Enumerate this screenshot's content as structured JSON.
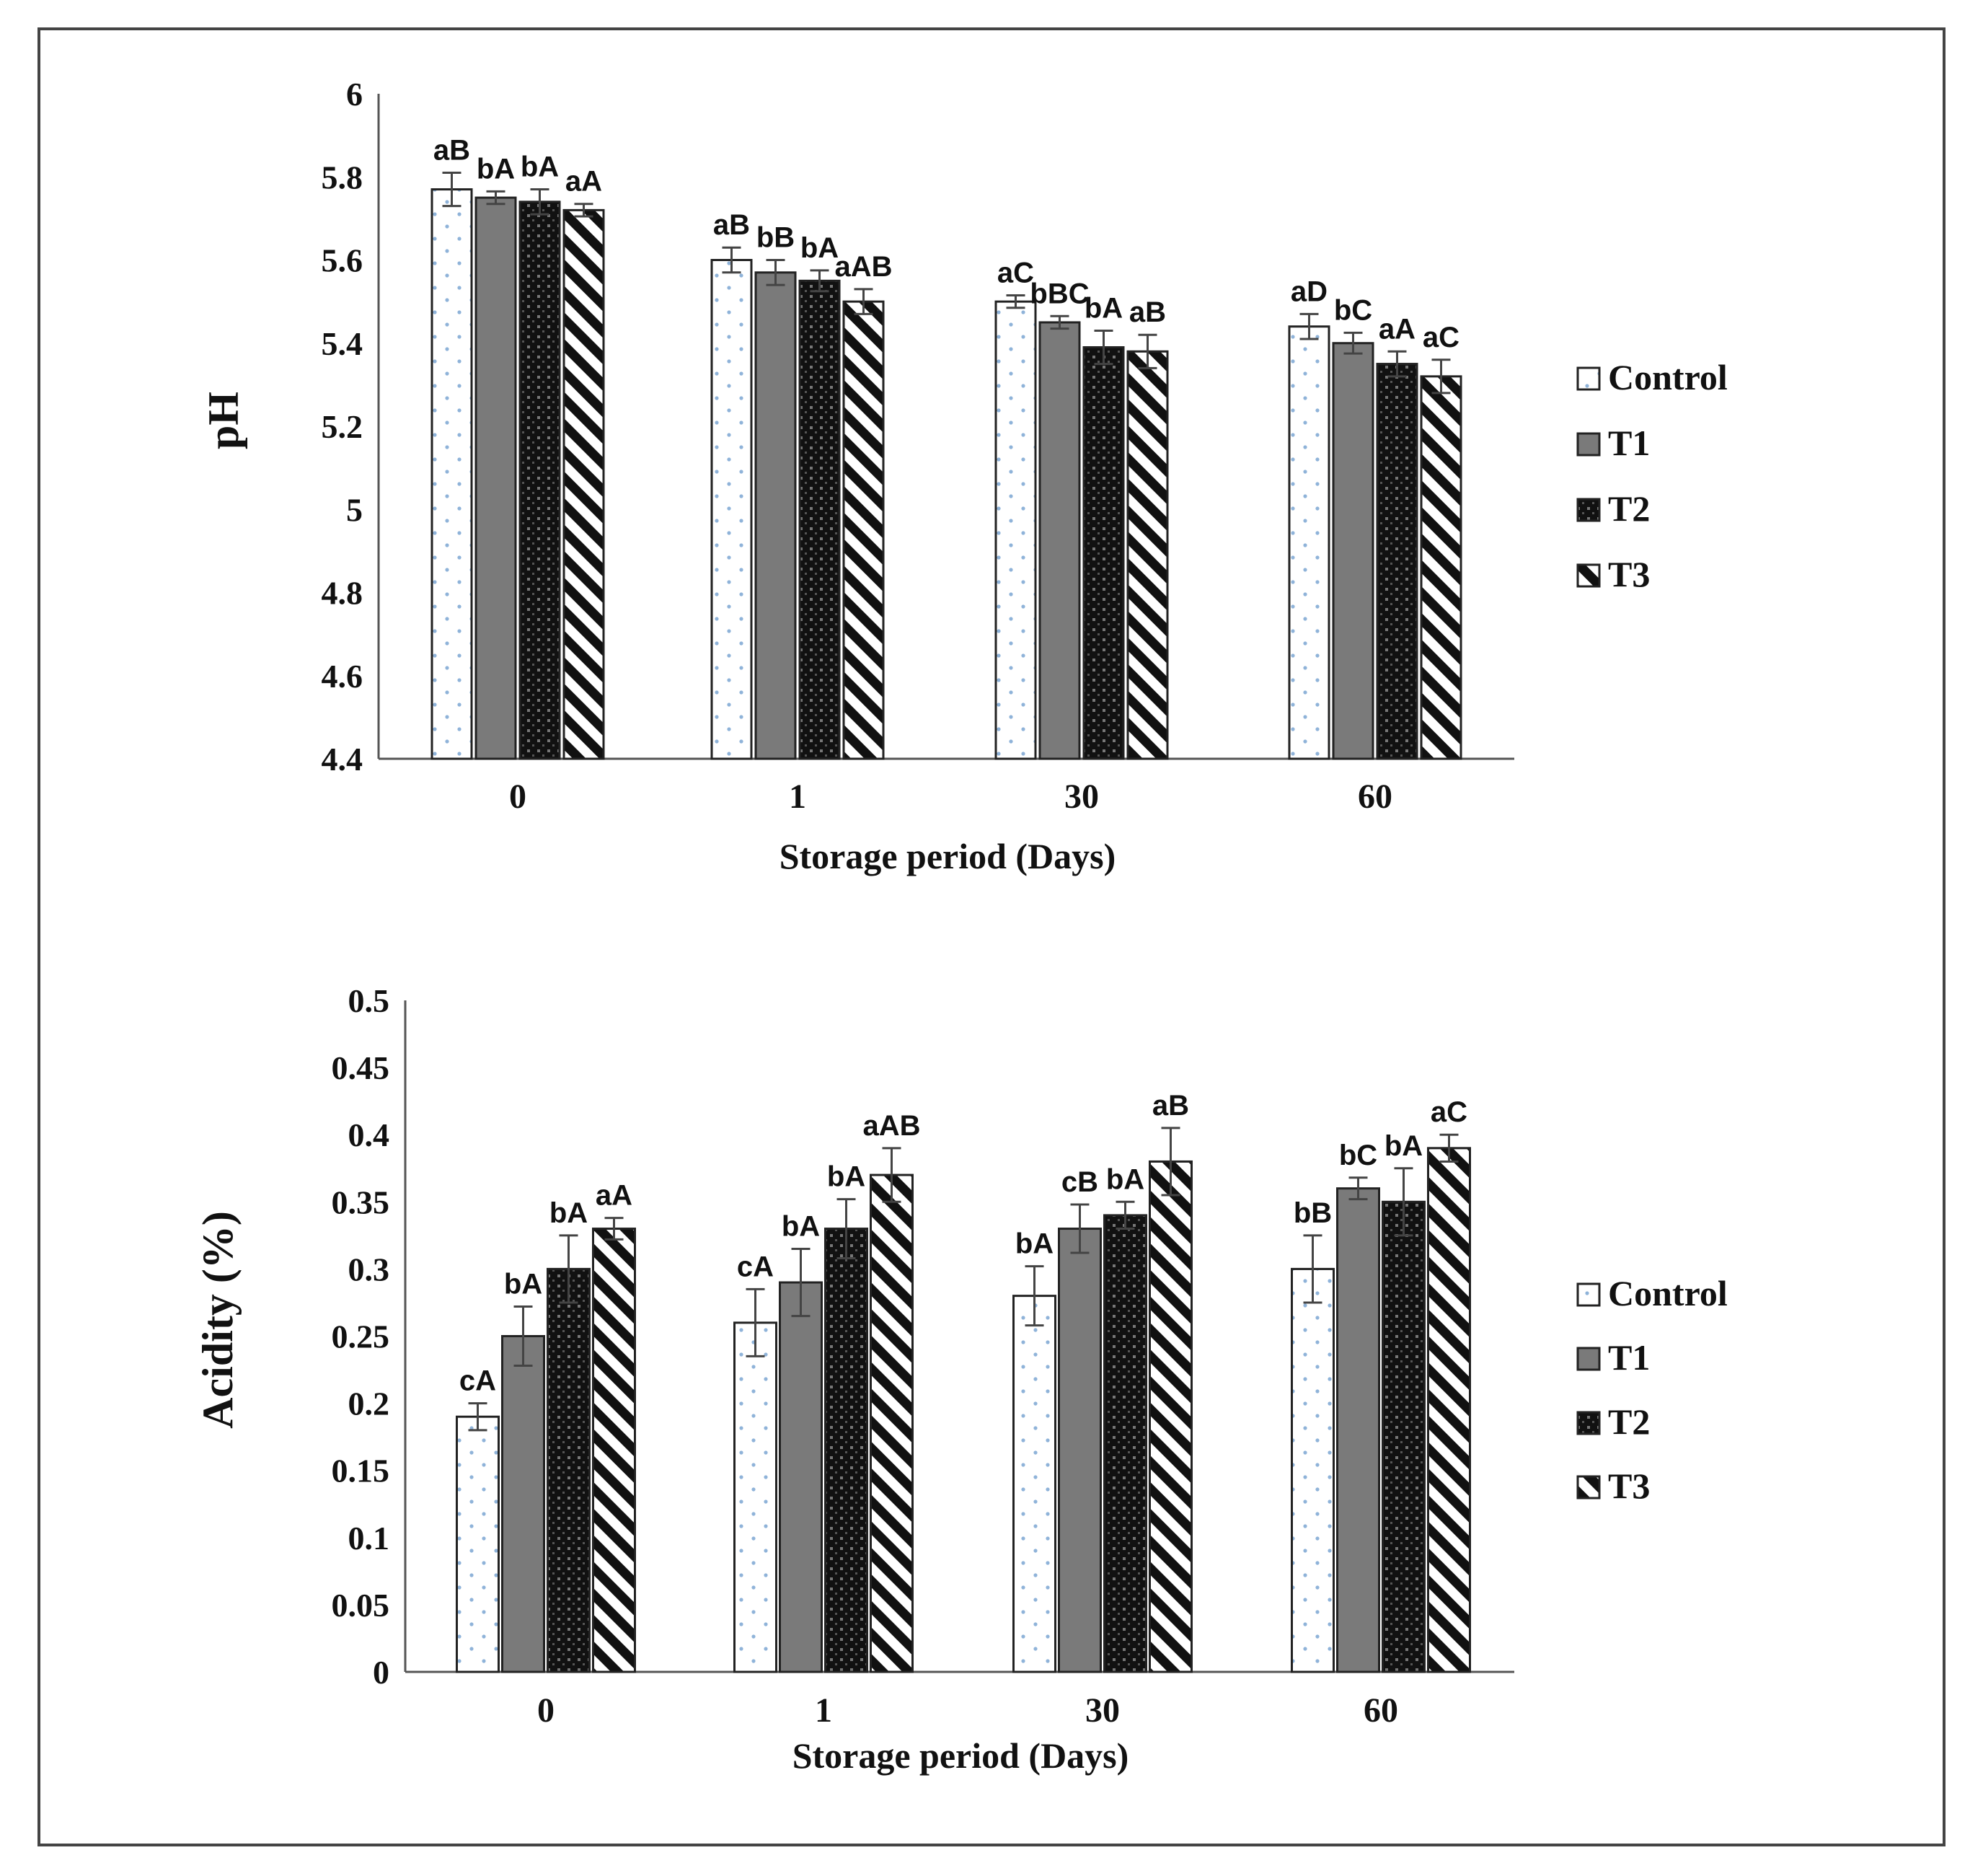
{
  "chart_data": [
    {
      "type": "bar",
      "title": "",
      "xlabel": "Storage period (Days)",
      "ylabel": "pH",
      "categories": [
        "0",
        "1",
        "30",
        "60"
      ],
      "ylim": [
        4.4,
        6
      ],
      "yticks": [
        "6",
        "5.8",
        "5.6",
        "5.4",
        "5.2",
        "5",
        "4.8",
        "4.6",
        "4.4"
      ],
      "grid": false,
      "legend": "right",
      "series": [
        {
          "name": "Control",
          "values": [
            5.77,
            5.6,
            5.5,
            5.44
          ],
          "errors": [
            0.04,
            0.03,
            0.015,
            0.03
          ],
          "labels": [
            "aB",
            "aB",
            "aC",
            "aD"
          ]
        },
        {
          "name": "T1",
          "values": [
            5.75,
            5.57,
            5.45,
            5.4
          ],
          "errors": [
            0.015,
            0.03,
            0.015,
            0.025
          ],
          "labels": [
            "bA",
            "bB",
            "bBC",
            "bC"
          ]
        },
        {
          "name": "T2",
          "values": [
            5.74,
            5.55,
            5.39,
            5.35
          ],
          "errors": [
            0.03,
            0.025,
            0.04,
            0.03
          ],
          "labels": [
            "bA",
            "bA",
            "bA",
            "aA"
          ]
        },
        {
          "name": "T3",
          "values": [
            5.72,
            5.5,
            5.38,
            5.32
          ],
          "errors": [
            0.015,
            0.03,
            0.04,
            0.04
          ],
          "labels": [
            "aA",
            "aAB",
            "aB",
            "aC"
          ]
        }
      ]
    },
    {
      "type": "bar",
      "title": "",
      "xlabel": "Storage period (Days)",
      "ylabel": "Acidity (%)",
      "categories": [
        "0",
        "1",
        "30",
        "60"
      ],
      "ylim": [
        0,
        0.5
      ],
      "yticks": [
        "0.5",
        "0.45",
        "0.4",
        "0.35",
        "0.3",
        "0.25",
        "0.2",
        "0.15",
        "0.1",
        "0.05",
        "0"
      ],
      "grid": false,
      "legend": "right",
      "series": [
        {
          "name": "Control",
          "values": [
            0.19,
            0.26,
            0.28,
            0.3
          ],
          "errors": [
            0.01,
            0.025,
            0.022,
            0.025
          ],
          "labels": [
            "cA",
            "cA",
            "bA",
            "bB"
          ]
        },
        {
          "name": "T1",
          "values": [
            0.25,
            0.29,
            0.33,
            0.36
          ],
          "errors": [
            0.022,
            0.025,
            0.018,
            0.008
          ],
          "labels": [
            "bA",
            "bA",
            "cB",
            "bC"
          ]
        },
        {
          "name": "T2",
          "values": [
            0.3,
            0.33,
            0.34,
            0.35
          ],
          "errors": [
            0.025,
            0.022,
            0.01,
            0.025
          ],
          "labels": [
            "bA",
            "bA",
            "bA",
            "bA"
          ]
        },
        {
          "name": "T3",
          "values": [
            0.33,
            0.37,
            0.38,
            0.39
          ],
          "errors": [
            0.008,
            0.02,
            0.025,
            0.01
          ],
          "labels": [
            "aA",
            "aAB",
            "aB",
            "aC"
          ]
        }
      ]
    }
  ]
}
